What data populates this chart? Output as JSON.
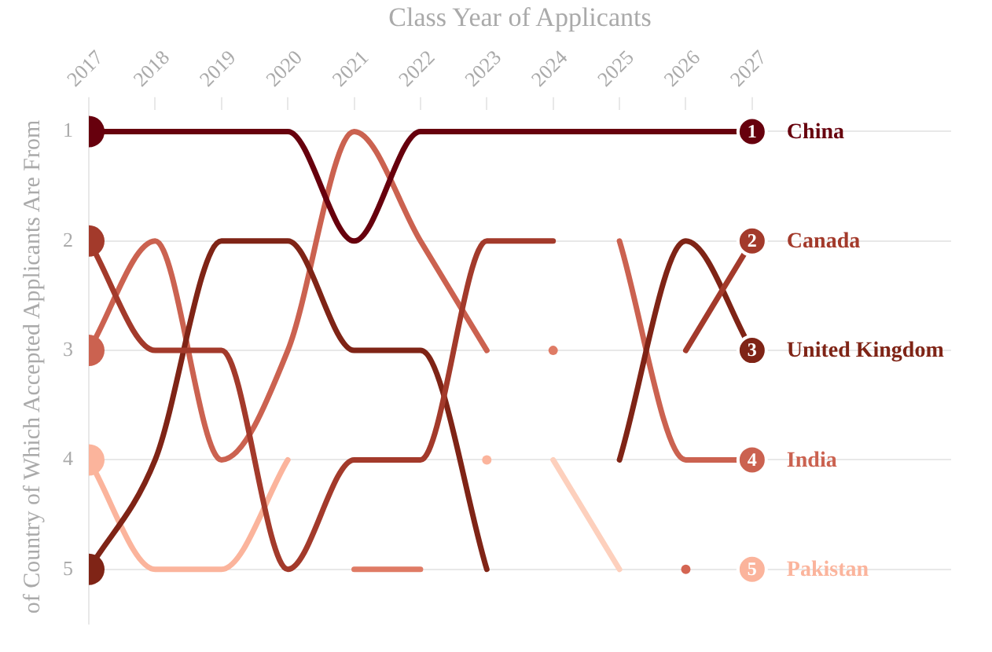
{
  "chart_data": {
    "type": "line",
    "xlabel": "Class Year of Applicants",
    "ylabel": "of Country of Which Accepted Applicants Are From",
    "x": [
      2017,
      2018,
      2019,
      2020,
      2021,
      2022,
      2023,
      2024,
      2025,
      2026,
      2027
    ],
    "xlim": [
      2017,
      2030
    ],
    "xticks": [
      2017,
      2018,
      2019,
      2020,
      2021,
      2022,
      2023,
      2024,
      2025,
      2026,
      2027
    ],
    "ylim": [
      5.5,
      0.8
    ],
    "yticks": [
      1,
      2,
      3,
      4,
      5
    ],
    "grid": "y",
    "legend": "right",
    "line_style": "solid",
    "series": [
      {
        "name": "China",
        "color": "#67000d",
        "values": [
          1,
          1,
          1,
          1,
          2,
          1,
          1,
          1,
          1,
          1,
          1
        ],
        "value_labels": [
          null,
          null,
          null,
          null,
          null,
          null,
          null,
          null,
          null,
          null,
          "1"
        ]
      },
      {
        "name": "Canada",
        "color": "#a33a2b",
        "values": [
          2,
          3,
          3,
          5,
          4,
          4,
          2,
          2,
          null,
          3,
          2
        ],
        "value_labels": [
          null,
          null,
          null,
          null,
          null,
          null,
          null,
          null,
          null,
          null,
          "2"
        ]
      },
      {
        "name": "United Kingdom",
        "color": "#7f2416",
        "values": [
          5,
          4,
          2,
          2,
          3,
          3,
          5,
          null,
          4,
          2,
          3
        ],
        "value_labels": [
          null,
          null,
          null,
          null,
          null,
          null,
          null,
          null,
          null,
          null,
          "3"
        ]
      },
      {
        "name": "India",
        "color": "#cb6250",
        "values": [
          3,
          2,
          4,
          3,
          1,
          2,
          3,
          null,
          2,
          4,
          4
        ],
        "value_labels": [
          null,
          null,
          null,
          null,
          null,
          null,
          null,
          null,
          null,
          null,
          "4"
        ]
      },
      {
        "name": "Pakistan",
        "color": "#fbb49c",
        "values": [
          4,
          5,
          5,
          4,
          null,
          null,
          4,
          null,
          null,
          null,
          5
        ],
        "value_labels": [
          null,
          null,
          null,
          null,
          null,
          null,
          null,
          null,
          null,
          null,
          "5"
        ]
      },
      {
        "color": "#df7b65",
        "values": [
          null,
          null,
          null,
          null,
          5,
          5,
          null,
          3,
          null,
          null,
          null
        ]
      },
      {
        "color": "#d46552",
        "marker": "circle",
        "values": [
          null,
          null,
          null,
          null,
          null,
          null,
          null,
          null,
          null,
          5,
          null
        ]
      },
      {
        "color": "#fdd0bd",
        "values": [
          null,
          null,
          null,
          null,
          null,
          null,
          null,
          4,
          5,
          null,
          null
        ]
      }
    ]
  }
}
